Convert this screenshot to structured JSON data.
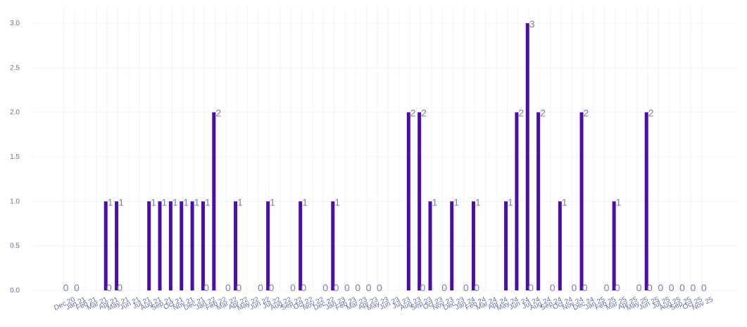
{
  "chart_data": {
    "type": "bar",
    "categories": [
      "Dec 20",
      "Jan 21",
      "Feb 21",
      "Mar 21",
      "Apr 21",
      "May 21",
      "Jun 21",
      "Jul 21",
      "Aug 21",
      "Sep 21",
      "Oct 21",
      "Nov 21",
      "Dec 21",
      "Jan 22",
      "Feb 22",
      "Mar 22",
      "Apr 22",
      "May 22",
      "Jun 22",
      "Jul 22",
      "Aug 22",
      "Sep 22",
      "Oct 22",
      "Nov 22",
      "Dec 22",
      "Jan 23",
      "Feb 23",
      "Mar 23",
      "Apr 23",
      "May 23",
      "Jun 23",
      "Jul 23",
      "Aug 23",
      "Sep 23",
      "Oct 23",
      "Nov 23",
      "Dec 23",
      "Jan 24",
      "Feb 24",
      "Mar 24",
      "Apr 24",
      "May 24",
      "Jun 24",
      "Jul 24",
      "Aug 24",
      "Sep 24",
      "Oct 24",
      "Nov 24",
      "Dec 24",
      "Jan 25",
      "Feb 25",
      "Mar 25",
      "Apr 25",
      "May 25",
      "Jun 25",
      "Jul 25",
      "Aug 25",
      "Sep 25",
      "Oct 25",
      "Nov 25"
    ],
    "values": [
      0,
      0,
      1,
      1,
      0,
      0,
      1,
      1,
      1,
      1,
      1,
      1,
      2,
      0,
      1,
      0,
      0,
      1,
      0,
      0,
      1,
      0,
      0,
      1,
      0,
      0,
      0,
      0,
      0,
      0,
      2,
      2,
      1,
      0,
      1,
      0,
      1,
      0,
      0,
      1,
      2,
      3,
      2,
      0,
      1,
      0,
      2,
      0,
      0,
      1,
      0,
      0,
      2,
      0,
      0,
      0,
      0,
      0,
      0,
      0
    ],
    "yticks": [
      "0.0",
      "0.5",
      "1.0",
      "1.5",
      "2.0",
      "2.5",
      "3.0"
    ],
    "ylim": [
      0,
      3.15
    ],
    "bar_color": "#4b0fa3",
    "grid": true,
    "legend": "none"
  }
}
